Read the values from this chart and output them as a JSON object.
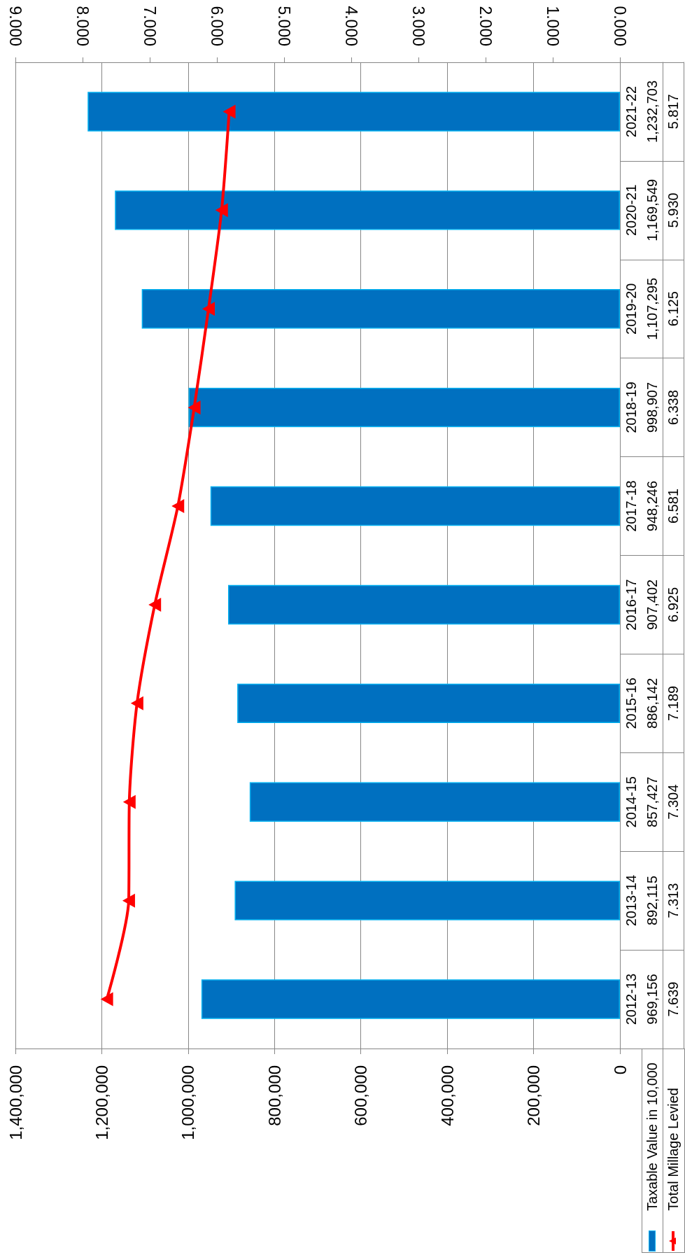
{
  "chart_data": {
    "type": "bar",
    "orientation": "horizontal",
    "categories": [
      "2021-22",
      "2020-21",
      "2019-20",
      "2018-19",
      "2017-18",
      "2016-17",
      "2015-16",
      "2014-15",
      "2013-14",
      "2012-13"
    ],
    "series": [
      {
        "name": "Taxable Value in 10,000",
        "color": "#0070c0",
        "values": [
          1232703,
          1169549,
          1107295,
          998907,
          948246,
          907402,
          886142,
          857427,
          892115,
          969156
        ],
        "value_labels": [
          "1,232,703",
          "1,169,549",
          "1,107,295",
          "998,907",
          "948,246",
          "907,402",
          "886,142",
          "857,427",
          "892,115",
          "969,156"
        ]
      },
      {
        "name": "Total Millage Levied",
        "type": "line",
        "axis": "x2",
        "color": "#ff0000",
        "line_style": "solid",
        "values": [
          5.817,
          5.93,
          6.125,
          6.338,
          6.581,
          6.925,
          7.189,
          7.304,
          7.313,
          7.639
        ],
        "value_labels": [
          "5.817",
          "5.930",
          "6.125",
          "6.338",
          "6.581",
          "6.925",
          "7.189",
          "7.304",
          "7.313",
          "7.639"
        ]
      }
    ],
    "xlim": [
      1400000,
      0
    ],
    "xticks": [
      0,
      {
        "value": 200000,
        "label": "200,000"
      },
      {
        "value": 400000,
        "label": "400,000"
      },
      {
        "value": 600000,
        "label": "600,000"
      },
      {
        "value": 800000,
        "label": "800,000"
      },
      {
        "value": 1000000,
        "label": "1,000,000"
      },
      {
        "value": 1200000,
        "label": "1,200,000"
      },
      {
        "value": 1400000,
        "label": "1,400,000"
      }
    ],
    "x2lim": [
      9,
      0
    ],
    "x2ticks": [
      {
        "value": 0,
        "label": "0.000"
      },
      {
        "value": 1,
        "label": "1.000"
      },
      {
        "value": 2,
        "label": "2.000"
      },
      {
        "value": 3,
        "label": "3.000"
      },
      {
        "value": 4,
        "label": "4.000"
      },
      {
        "value": 5,
        "label": "5.000"
      },
      {
        "value": 6,
        "label": "6.000"
      },
      {
        "value": 7,
        "label": "7.000"
      },
      {
        "value": 8,
        "label": "8.000"
      },
      {
        "value": 9,
        "label": "9.000"
      }
    ],
    "grid": "x",
    "legend": "bottom right",
    "marker": "triangle"
  }
}
